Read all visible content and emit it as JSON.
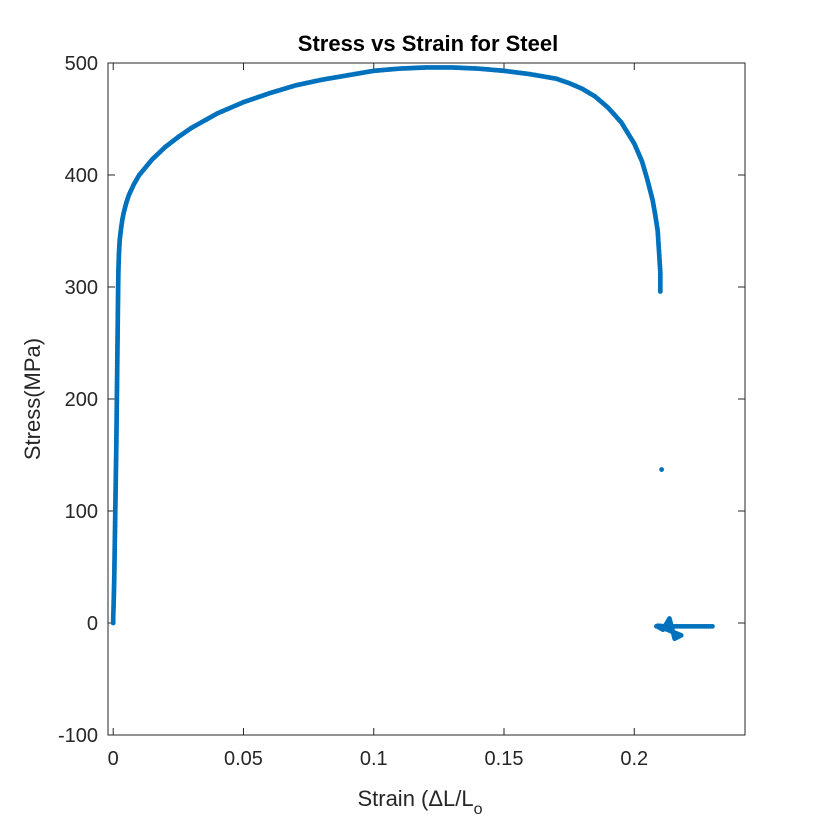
{
  "chart_data": {
    "type": "scatter",
    "title": "Stress vs Strain for Steel",
    "xlabel": "Strain (ΔL/L",
    "xlabel_sub": "o",
    "ylabel": "Stress(MPa)",
    "xlim": [
      -0.002,
      0.2425
    ],
    "ylim": [
      -100,
      500
    ],
    "xticks": [
      0,
      0.05,
      0.1,
      0.15,
      0.2
    ],
    "xtick_labels": [
      "0",
      "0.05",
      "0.1",
      "0.15",
      "0.2"
    ],
    "yticks": [
      -100,
      0,
      100,
      200,
      300,
      400,
      500
    ],
    "ytick_labels": [
      "-100",
      "0",
      "100",
      "200",
      "300",
      "400",
      "500"
    ],
    "grid": false,
    "marker_color": "#0072bd",
    "series": [
      {
        "points": [
          [
            0.0,
            0.0
          ],
          [
            0.0,
            5
          ],
          [
            0.0001,
            12
          ],
          [
            0.0002,
            20
          ],
          [
            0.0003,
            30
          ],
          [
            0.0004,
            40
          ],
          [
            0.0005,
            55
          ],
          [
            0.0006,
            70
          ],
          [
            0.0007,
            85
          ],
          [
            0.0008,
            100
          ],
          [
            0.0009,
            115
          ],
          [
            0.001,
            130
          ],
          [
            0.0011,
            145
          ],
          [
            0.0012,
            160
          ],
          [
            0.0013,
            180
          ],
          [
            0.0014,
            200
          ],
          [
            0.0015,
            220
          ],
          [
            0.0016,
            240
          ],
          [
            0.0017,
            260
          ],
          [
            0.0018,
            280
          ],
          [
            0.0019,
            300
          ],
          [
            0.002,
            315
          ],
          [
            0.0022,
            330
          ],
          [
            0.0025,
            342
          ],
          [
            0.003,
            352
          ],
          [
            0.0035,
            360
          ],
          [
            0.004,
            366
          ],
          [
            0.005,
            375
          ],
          [
            0.006,
            382
          ],
          [
            0.008,
            392
          ],
          [
            0.01,
            400
          ],
          [
            0.015,
            414
          ],
          [
            0.02,
            425
          ],
          [
            0.025,
            434
          ],
          [
            0.03,
            442
          ],
          [
            0.04,
            455
          ],
          [
            0.05,
            465
          ],
          [
            0.06,
            473
          ],
          [
            0.07,
            480
          ],
          [
            0.08,
            485
          ],
          [
            0.09,
            489
          ],
          [
            0.1,
            493
          ],
          [
            0.11,
            495
          ],
          [
            0.12,
            496
          ],
          [
            0.13,
            496
          ],
          [
            0.14,
            495
          ],
          [
            0.15,
            493
          ],
          [
            0.16,
            490
          ],
          [
            0.17,
            486
          ],
          [
            0.175,
            482
          ],
          [
            0.18,
            477
          ],
          [
            0.185,
            470
          ],
          [
            0.19,
            460
          ],
          [
            0.195,
            447
          ],
          [
            0.2,
            428
          ],
          [
            0.203,
            412
          ],
          [
            0.205,
            396
          ],
          [
            0.207,
            378
          ],
          [
            0.208,
            365
          ],
          [
            0.209,
            350
          ],
          [
            0.2092,
            342
          ],
          [
            0.2094,
            335
          ],
          [
            0.2096,
            328
          ],
          [
            0.2098,
            320
          ],
          [
            0.21,
            313
          ],
          [
            0.21,
            296
          ],
          [
            0.2105,
            137
          ],
          [
            0.2085,
            -3
          ],
          [
            0.2095,
            -4
          ],
          [
            0.211,
            -6
          ],
          [
            0.2135,
            4
          ],
          [
            0.2155,
            -14
          ],
          [
            0.218,
            -11
          ],
          [
            0.209,
            -2.5
          ],
          [
            0.212,
            -3
          ],
          [
            0.215,
            -3
          ],
          [
            0.218,
            -3
          ],
          [
            0.221,
            -3
          ],
          [
            0.224,
            -3
          ],
          [
            0.227,
            -3
          ],
          [
            0.23,
            -3
          ]
        ]
      }
    ]
  }
}
